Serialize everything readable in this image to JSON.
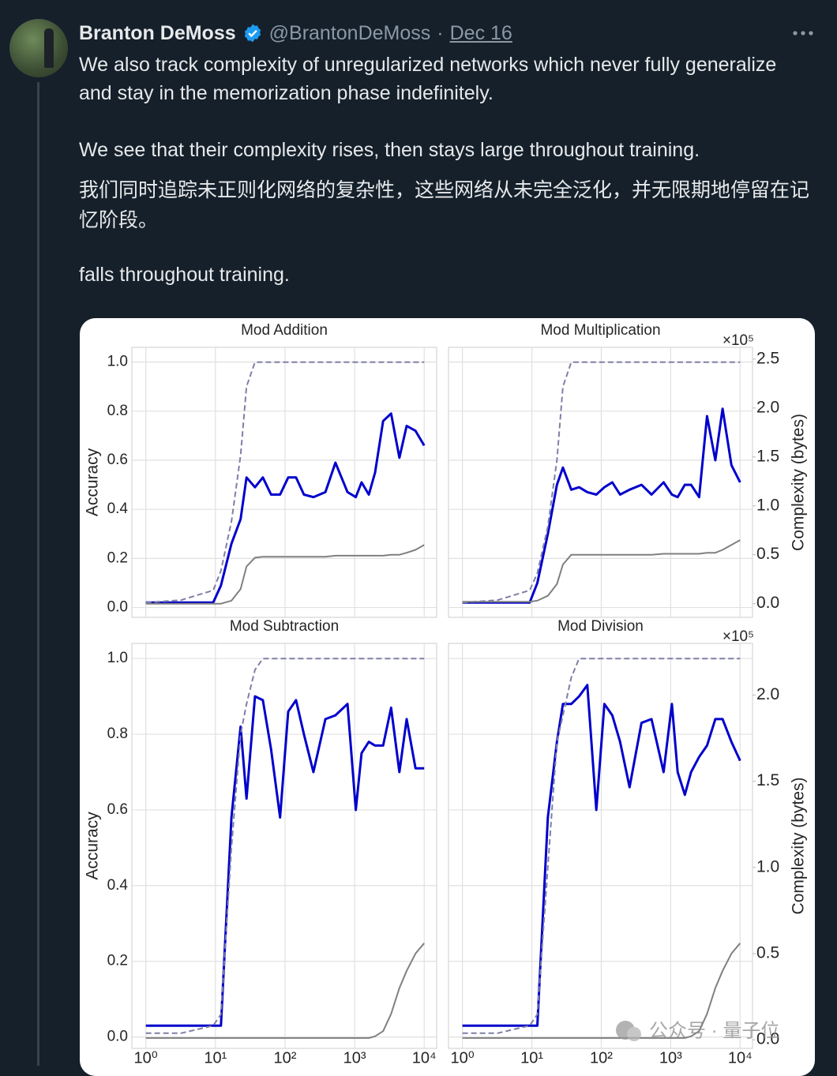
{
  "tweet": {
    "name": "Branton DeMoss",
    "handle": "@BrantonDeMoss",
    "separator": "·",
    "date": "Dec 16",
    "paragraphs": [
      "We also track complexity of unregularized networks which never fully generalize and stay in the memorization phase indefinitely.",
      "We see that their complexity rises, then stays large throughout training.",
      "我们同时追踪未正则化网络的复杂性，这些网络从未完全泛化，并无限期地停留在记忆阶段。",
      "falls throughout training."
    ]
  },
  "watermark": "公众号 · 量子位",
  "figure": {
    "panels": [
      {
        "type": "line",
        "title": "Mod Addition",
        "ylabel": "Accuracy",
        "xscale": "log",
        "grid": true,
        "xtick_labels": false,
        "ytick_labels": true,
        "x": [
          1,
          3.2,
          9.3,
          12,
          17,
          23,
          28,
          37,
          48,
          63,
          85,
          111,
          144,
          187,
          256,
          380,
          530,
          790,
          1040,
          1260,
          1600,
          1970,
          2570,
          3340,
          4400,
          5600,
          7500,
          10000
        ],
        "xlim": [
          0.63,
          15100
        ],
        "xticks": [
          1,
          10,
          100,
          1000,
          10000
        ],
        "ylim": [
          -0.04,
          1.06
        ],
        "yticks": [
          {
            "value": 0,
            "label": "0.0"
          },
          0.2,
          0.4,
          0.6,
          0.8,
          {
            "value": 1,
            "label": "1.0"
          }
        ],
        "y2lim": [
          -0.14,
          2.62
        ],
        "series": [
          {
            "color": "#0000cc",
            "width": 3,
            "dash": false,
            "values": [
              0.02,
              0.02,
              0.02,
              0.09,
              0.26,
              0.36,
              0.53,
              0.49,
              0.53,
              0.46,
              0.46,
              0.53,
              0.53,
              0.46,
              0.45,
              0.47,
              0.59,
              0.47,
              0.45,
              0.51,
              0.46,
              0.55,
              0.76,
              0.79,
              0.61,
              0.74,
              0.72,
              0.66
            ]
          },
          {
            "color": "#7f7fa8",
            "width": 2,
            "dash": true,
            "values": [
              0.02,
              0.03,
              0.07,
              0.15,
              0.35,
              0.62,
              0.9,
              1,
              1,
              1,
              1,
              1,
              1,
              1,
              1,
              1,
              1,
              1,
              1,
              1,
              1,
              1,
              1,
              1,
              1,
              1,
              1,
              1
            ]
          },
          {
            "color": "#808080",
            "width": 2,
            "dash": false,
            "axis": "y2",
            "values": [
              0,
              0,
              0,
              0,
              0.03,
              0.15,
              0.38,
              0.47,
              0.48,
              0.48,
              0.48,
              0.48,
              0.48,
              0.48,
              0.48,
              0.48,
              0.49,
              0.49,
              0.49,
              0.49,
              0.49,
              0.49,
              0.49,
              0.5,
              0.5,
              0.52,
              0.55,
              0.6
            ]
          }
        ]
      },
      {
        "type": "line",
        "title": "Mod Multiplication",
        "y2label": "Complexity (bytes)",
        "y2_multiplier": "×10⁵",
        "xscale": "log",
        "grid": true,
        "xtick_labels": false,
        "ytick_labels": false,
        "x": [
          1,
          3.2,
          9.3,
          12,
          17,
          23,
          28,
          37,
          48,
          63,
          85,
          111,
          144,
          187,
          256,
          380,
          530,
          790,
          1040,
          1260,
          1600,
          1970,
          2570,
          3340,
          4400,
          5600,
          7500,
          10000
        ],
        "xlim": [
          0.63,
          15100
        ],
        "xticks": [
          1,
          10,
          100,
          1000,
          10000
        ],
        "ylim": [
          -0.04,
          1.06
        ],
        "yticks": [
          0,
          0.2,
          0.4,
          0.6,
          0.8,
          1
        ],
        "y2lim": [
          -0.14,
          2.62
        ],
        "y2ticks": [
          {
            "value": 0,
            "label": "0.0"
          },
          0.5,
          {
            "value": 1,
            "label": "1.0"
          },
          1.5,
          {
            "value": 2,
            "label": "2.0"
          },
          2.5
        ],
        "series": [
          {
            "color": "#0000cc",
            "width": 3,
            "dash": false,
            "values": [
              0.02,
              0.02,
              0.02,
              0.1,
              0.3,
              0.5,
              0.57,
              0.48,
              0.49,
              0.47,
              0.46,
              0.49,
              0.51,
              0.46,
              0.48,
              0.5,
              0.46,
              0.51,
              0.46,
              0.45,
              0.5,
              0.5,
              0.45,
              0.78,
              0.6,
              0.81,
              0.58,
              0.51
            ]
          },
          {
            "color": "#7f7fa8",
            "width": 2,
            "dash": true,
            "values": [
              0.02,
              0.03,
              0.07,
              0.14,
              0.33,
              0.6,
              0.9,
              1,
              1,
              1,
              1,
              1,
              1,
              1,
              1,
              1,
              1,
              1,
              1,
              1,
              1,
              1,
              1,
              1,
              1,
              1,
              1,
              1
            ]
          },
          {
            "color": "#808080",
            "width": 2,
            "dash": false,
            "axis": "y2",
            "values": [
              0.02,
              0.02,
              0.02,
              0.03,
              0.08,
              0.2,
              0.4,
              0.5,
              0.5,
              0.5,
              0.5,
              0.5,
              0.5,
              0.5,
              0.5,
              0.5,
              0.5,
              0.51,
              0.51,
              0.51,
              0.51,
              0.51,
              0.51,
              0.52,
              0.52,
              0.55,
              0.6,
              0.65
            ]
          }
        ]
      },
      {
        "type": "line",
        "title": "Mod Subtraction",
        "ylabel": "Accuracy",
        "xscale": "log",
        "grid": true,
        "xtick_labels": true,
        "ytick_labels": true,
        "x": [
          1,
          3.2,
          9.3,
          12,
          17,
          23,
          28,
          37,
          48,
          63,
          85,
          111,
          144,
          187,
          256,
          380,
          530,
          790,
          1040,
          1260,
          1600,
          1970,
          2570,
          3340,
          4400,
          5600,
          7500,
          10000
        ],
        "xlim": [
          0.63,
          15100
        ],
        "xticks": [
          {
            "value": 1,
            "label": "10⁰"
          },
          {
            "value": 10,
            "label": "10¹"
          },
          {
            "value": 100,
            "label": "10²"
          },
          {
            "value": 1000,
            "label": "10³"
          },
          {
            "value": 10000,
            "label": "10⁴"
          }
        ],
        "ylim": [
          -0.03,
          1.04
        ],
        "yticks": [
          {
            "value": 0,
            "label": "0.0"
          },
          0.2,
          0.4,
          0.6,
          0.8,
          {
            "value": 1,
            "label": "1.0"
          }
        ],
        "y2lim": [
          -0.05,
          2.3
        ],
        "series": [
          {
            "color": "#0000cc",
            "width": 3,
            "dash": false,
            "values": [
              0.03,
              0.03,
              0.03,
              0.03,
              0.58,
              0.82,
              0.63,
              0.9,
              0.89,
              0.76,
              0.58,
              0.86,
              0.89,
              0.8,
              0.7,
              0.84,
              0.85,
              0.88,
              0.6,
              0.75,
              0.78,
              0.77,
              0.77,
              0.87,
              0.7,
              0.84,
              0.71,
              0.71
            ]
          },
          {
            "color": "#7f7fa8",
            "width": 2,
            "dash": true,
            "values": [
              0.01,
              0.01,
              0.03,
              0.06,
              0.5,
              0.8,
              0.88,
              0.97,
              1,
              1,
              1,
              1,
              1,
              1,
              1,
              1,
              1,
              1,
              1,
              1,
              1,
              1,
              1,
              1,
              1,
              1,
              1,
              1
            ]
          },
          {
            "color": "#808080",
            "width": 2,
            "dash": false,
            "axis": "y2",
            "values": [
              0.01,
              0.01,
              0.01,
              0.01,
              0.01,
              0.01,
              0.01,
              0.01,
              0.01,
              0.01,
              0.01,
              0.01,
              0.01,
              0.01,
              0.01,
              0.01,
              0.01,
              0.01,
              0.01,
              0.01,
              0.01,
              0.02,
              0.05,
              0.15,
              0.3,
              0.4,
              0.5,
              0.56
            ]
          }
        ]
      },
      {
        "type": "line",
        "title": "Mod Division",
        "y2label": "Complexity (bytes)",
        "y2_multiplier": "×10⁵",
        "xscale": "log",
        "grid": true,
        "xtick_labels": true,
        "ytick_labels": false,
        "x": [
          1,
          3.2,
          9.3,
          12,
          17,
          23,
          28,
          37,
          48,
          63,
          85,
          111,
          144,
          187,
          256,
          380,
          530,
          790,
          1040,
          1260,
          1600,
          1970,
          2570,
          3340,
          4400,
          5600,
          7500,
          10000
        ],
        "xlim": [
          0.63,
          15100
        ],
        "xticks": [
          {
            "value": 1,
            "label": "10⁰"
          },
          {
            "value": 10,
            "label": "10¹"
          },
          {
            "value": 100,
            "label": "10²"
          },
          {
            "value": 1000,
            "label": "10³"
          },
          {
            "value": 10000,
            "label": "10⁴"
          }
        ],
        "ylim": [
          -0.03,
          1.04
        ],
        "yticks": [
          0,
          0.2,
          0.4,
          0.6,
          0.8,
          1
        ],
        "y2lim": [
          -0.05,
          2.3
        ],
        "y2ticks": [
          {
            "value": 0,
            "label": "0.0"
          },
          0.5,
          {
            "value": 1,
            "label": "1.0"
          },
          1.5,
          {
            "value": 2,
            "label": "2.0"
          }
        ],
        "series": [
          {
            "color": "#0000cc",
            "width": 3,
            "dash": false,
            "values": [
              0.03,
              0.03,
              0.03,
              0.03,
              0.58,
              0.78,
              0.88,
              0.88,
              0.9,
              0.93,
              0.6,
              0.88,
              0.85,
              0.78,
              0.66,
              0.83,
              0.84,
              0.7,
              0.88,
              0.7,
              0.64,
              0.7,
              0.74,
              0.77,
              0.84,
              0.84,
              0.78,
              0.73
            ]
          },
          {
            "color": "#7f7fa8",
            "width": 2,
            "dash": true,
            "values": [
              0.01,
              0.01,
              0.03,
              0.06,
              0.45,
              0.78,
              0.85,
              0.95,
              1,
              1,
              1,
              1,
              1,
              1,
              1,
              1,
              1,
              1,
              1,
              1,
              1,
              1,
              1,
              1,
              1,
              1,
              1,
              1
            ]
          },
          {
            "color": "#808080",
            "width": 2,
            "dash": false,
            "axis": "y2",
            "values": [
              0.01,
              0.01,
              0.01,
              0.01,
              0.01,
              0.01,
              0.01,
              0.01,
              0.01,
              0.01,
              0.01,
              0.01,
              0.01,
              0.01,
              0.01,
              0.01,
              0.01,
              0.01,
              0.01,
              0.01,
              0.01,
              0.02,
              0.05,
              0.15,
              0.3,
              0.4,
              0.5,
              0.56
            ]
          }
        ]
      }
    ]
  }
}
